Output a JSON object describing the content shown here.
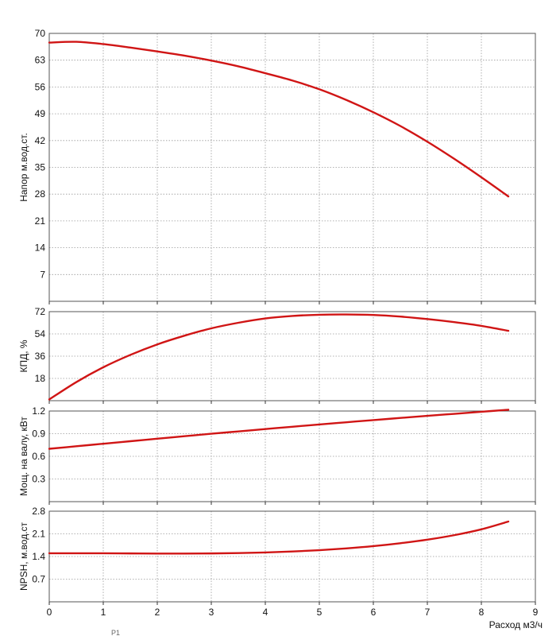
{
  "chart_data": [
    {
      "type": "line",
      "ylabel": "Напор м.вод.ст.",
      "xlim": [
        0,
        9
      ],
      "ylim": [
        0,
        70
      ],
      "x_ticks": [
        0,
        1,
        2,
        3,
        4,
        5,
        6,
        7,
        8,
        9
      ],
      "y_ticks": [
        7,
        14,
        21,
        28,
        35,
        42,
        49,
        56,
        63,
        70
      ],
      "show_x_tick_labels": false,
      "grid": true,
      "color": "#d01515",
      "series": [
        {
          "x": [
            0,
            0.5,
            1,
            1.5,
            2,
            2.5,
            3,
            3.5,
            4,
            4.5,
            5,
            5.5,
            6,
            6.5,
            7,
            7.5,
            8,
            8.5
          ],
          "y": [
            67.6,
            67.8,
            67.2,
            66.3,
            65.3,
            64.2,
            62.9,
            61.4,
            59.6,
            57.7,
            55.4,
            52.6,
            49.4,
            45.8,
            41.7,
            37.2,
            32.4,
            27.4
          ]
        }
      ]
    },
    {
      "type": "line",
      "ylabel": "КПД, %",
      "xlim": [
        0,
        9
      ],
      "ylim": [
        0,
        72
      ],
      "x_ticks": [
        0,
        1,
        2,
        3,
        4,
        5,
        6,
        7,
        8,
        9
      ],
      "y_ticks": [
        18,
        36,
        54,
        72
      ],
      "show_x_tick_labels": false,
      "grid": true,
      "color": "#d01515",
      "series": [
        {
          "x": [
            0,
            0.5,
            1,
            1.5,
            2,
            2.5,
            3,
            3.5,
            4,
            4.5,
            5,
            5.5,
            6,
            6.5,
            7,
            7.5,
            8,
            8.5
          ],
          "y": [
            1,
            15,
            27,
            37,
            45.5,
            52.5,
            58.5,
            63,
            66.5,
            68.5,
            69.5,
            69.7,
            69.3,
            68,
            66,
            63.5,
            60.5,
            56.5
          ]
        }
      ]
    },
    {
      "type": "line",
      "ylabel": "Мощ. на валу, кВт",
      "xlim": [
        0,
        9
      ],
      "ylim": [
        0,
        1.2
      ],
      "x_ticks": [
        0,
        1,
        2,
        3,
        4,
        5,
        6,
        7,
        8,
        9
      ],
      "y_ticks": [
        0.3,
        0.6,
        0.9,
        1.2
      ],
      "show_x_tick_labels": false,
      "grid": true,
      "color": "#d01515",
      "series": [
        {
          "x": [
            0,
            0.5,
            1,
            1.5,
            2,
            2.5,
            3,
            3.5,
            4,
            4.5,
            5,
            5.5,
            6,
            6.5,
            7,
            7.5,
            8,
            8.5
          ],
          "y": [
            0.7,
            0.733,
            0.767,
            0.8,
            0.833,
            0.866,
            0.899,
            0.93,
            0.961,
            0.992,
            1.022,
            1.051,
            1.08,
            1.108,
            1.136,
            1.163,
            1.19,
            1.217
          ]
        }
      ]
    },
    {
      "type": "line",
      "ylabel": "NPSH, м.вод.ст",
      "xlabel": "Расход м3/ч",
      "xlim": [
        0,
        9
      ],
      "ylim": [
        0,
        2.8
      ],
      "x_ticks": [
        0,
        1,
        2,
        3,
        4,
        5,
        6,
        7,
        8,
        9
      ],
      "y_ticks": [
        0.7,
        1.4,
        2.1,
        2.8
      ],
      "show_x_tick_labels": true,
      "grid": true,
      "color": "#d01515",
      "series": [
        {
          "x": [
            0,
            0.5,
            1,
            1.5,
            2,
            2.5,
            3,
            3.5,
            4,
            4.5,
            5,
            5.5,
            6,
            6.5,
            7,
            7.5,
            8,
            8.5
          ],
          "y": [
            1.5,
            1.5,
            1.5,
            1.495,
            1.49,
            1.49,
            1.495,
            1.505,
            1.525,
            1.555,
            1.595,
            1.65,
            1.72,
            1.81,
            1.92,
            2.06,
            2.24,
            2.48
          ]
        }
      ]
    }
  ],
  "footnote": "P1"
}
